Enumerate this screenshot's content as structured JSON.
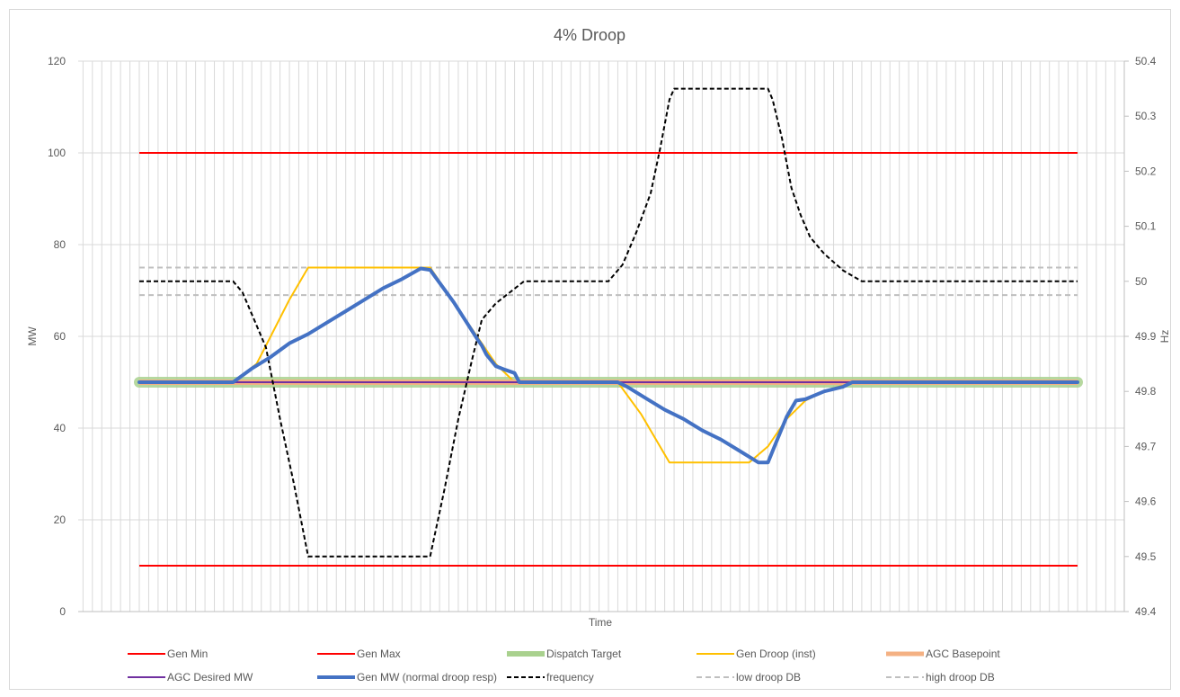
{
  "chart_data": {
    "type": "line",
    "title": "4% Droop",
    "xlabel": "Time",
    "ylabel": "MW",
    "y2label": "Hz",
    "ylim": [
      0,
      120
    ],
    "y2lim": [
      49.4,
      50.4
    ],
    "yticks": [
      "0",
      "20",
      "40",
      "60",
      "80",
      "100",
      "120"
    ],
    "y2ticks": [
      "49.4",
      "49.5",
      "49.6",
      "49.7",
      "49.8",
      "49.9",
      "50",
      "50.1",
      "50.2",
      "50.3",
      "50.4"
    ],
    "grid": true,
    "legend_position": "bottom",
    "n_points": 101,
    "series": [
      {
        "name": "Gen Min",
        "axis": "left",
        "color": "#ff0000",
        "style": "solid",
        "points": [
          [
            0,
            10
          ],
          [
            100,
            10
          ]
        ]
      },
      {
        "name": "Gen Max",
        "axis": "left",
        "color": "#ff0000",
        "style": "solid",
        "points": [
          [
            0,
            100
          ],
          [
            100,
            100
          ]
        ]
      },
      {
        "name": "Dispatch Target",
        "axis": "left",
        "color": "#a9d18e",
        "style": "thick",
        "points": [
          [
            0,
            50
          ],
          [
            100,
            50
          ]
        ]
      },
      {
        "name": "Gen Droop (inst)",
        "axis": "left",
        "color": "#ffc000",
        "style": "solid",
        "points": [
          [
            0,
            50
          ],
          [
            10,
            50
          ],
          [
            12.5,
            54
          ],
          [
            14,
            60
          ],
          [
            16,
            68
          ],
          [
            18,
            75
          ],
          [
            31,
            75
          ],
          [
            33.5,
            67.5
          ],
          [
            36,
            60
          ],
          [
            38,
            54
          ],
          [
            40,
            50
          ],
          [
            51,
            50
          ],
          [
            53.5,
            43
          ],
          [
            56.5,
            32.5
          ],
          [
            65,
            32.5
          ],
          [
            67,
            36
          ],
          [
            69,
            42
          ],
          [
            71,
            46
          ],
          [
            73,
            48
          ],
          [
            76,
            50
          ],
          [
            100,
            50
          ]
        ]
      },
      {
        "name": "AGC Basepoint",
        "axis": "left",
        "color": "#f4b183",
        "style": "medium",
        "points": [
          [
            0,
            50
          ],
          [
            100,
            50
          ]
        ]
      },
      {
        "name": "AGC Desired MW",
        "axis": "left",
        "color": "#7030a0",
        "style": "solid",
        "points": [
          [
            0,
            50
          ],
          [
            100,
            50
          ]
        ]
      },
      {
        "name": "Gen MW (normal droop resp)",
        "axis": "left",
        "color": "#4472c4",
        "style": "thick",
        "points": [
          [
            0,
            50
          ],
          [
            10,
            50
          ],
          [
            12,
            53
          ],
          [
            14,
            55.5
          ],
          [
            16,
            58.5
          ],
          [
            18,
            60.5
          ],
          [
            20,
            63
          ],
          [
            22,
            65.5
          ],
          [
            24,
            68
          ],
          [
            26,
            70.5
          ],
          [
            28,
            72.5
          ],
          [
            30,
            74.8
          ],
          [
            31,
            74.5
          ],
          [
            33.5,
            67.5
          ],
          [
            36,
            59.5
          ],
          [
            36.5,
            58
          ],
          [
            37,
            56
          ],
          [
            38,
            53.5
          ],
          [
            39,
            52.7
          ],
          [
            40,
            52
          ],
          [
            40.5,
            50
          ],
          [
            51,
            50
          ],
          [
            52,
            49
          ],
          [
            54,
            46.5
          ],
          [
            56,
            44
          ],
          [
            58,
            42
          ],
          [
            60,
            39.5
          ],
          [
            62,
            37.5
          ],
          [
            64,
            35
          ],
          [
            66,
            32.5
          ],
          [
            67,
            32.5
          ],
          [
            68,
            37.5
          ],
          [
            69,
            42.5
          ],
          [
            70,
            46
          ],
          [
            71,
            46.3
          ],
          [
            73,
            48
          ],
          [
            75,
            49
          ],
          [
            76,
            50
          ],
          [
            100,
            50
          ]
        ]
      },
      {
        "name": "frequency",
        "axis": "right",
        "color": "#000000",
        "style": "dashed",
        "points": [
          [
            0,
            50.0
          ],
          [
            10,
            50.0
          ],
          [
            11,
            49.98
          ],
          [
            12.5,
            49.92
          ],
          [
            13.5,
            49.88
          ],
          [
            15,
            49.75
          ],
          [
            16.5,
            49.63
          ],
          [
            18,
            49.5
          ],
          [
            31,
            49.5
          ],
          [
            32.5,
            49.62
          ],
          [
            34,
            49.75
          ],
          [
            35.5,
            49.86
          ],
          [
            36.5,
            49.93
          ],
          [
            38,
            49.96
          ],
          [
            41,
            50.0
          ],
          [
            50,
            50.0
          ],
          [
            51.5,
            50.03
          ],
          [
            53,
            50.09
          ],
          [
            54.5,
            50.16
          ],
          [
            55.5,
            50.24
          ],
          [
            56.5,
            50.33
          ],
          [
            57,
            50.35
          ],
          [
            67,
            50.35
          ],
          [
            67.5,
            50.33
          ],
          [
            68.5,
            50.26
          ],
          [
            69.5,
            50.17
          ],
          [
            70.5,
            50.12
          ],
          [
            71.5,
            50.08
          ],
          [
            73,
            50.05
          ],
          [
            75,
            50.02
          ],
          [
            77,
            50.0
          ],
          [
            100,
            50.0
          ]
        ]
      },
      {
        "name": "low droop DB",
        "axis": "right",
        "color": "#bfbfbf",
        "style": "dashed",
        "points": [
          [
            0,
            49.975
          ],
          [
            100,
            49.975
          ]
        ]
      },
      {
        "name": "high droop DB",
        "axis": "right",
        "color": "#bfbfbf",
        "style": "dashed",
        "points": [
          [
            0,
            50.025
          ],
          [
            100,
            50.025
          ]
        ]
      }
    ],
    "draw_order": [
      "Gen Min",
      "Gen Max",
      "Dispatch Target",
      "low droop DB",
      "high droop DB",
      "Gen Droop (inst)",
      "AGC Basepoint",
      "AGC Desired MW",
      "frequency",
      "Gen MW (normal droop resp)"
    ]
  }
}
